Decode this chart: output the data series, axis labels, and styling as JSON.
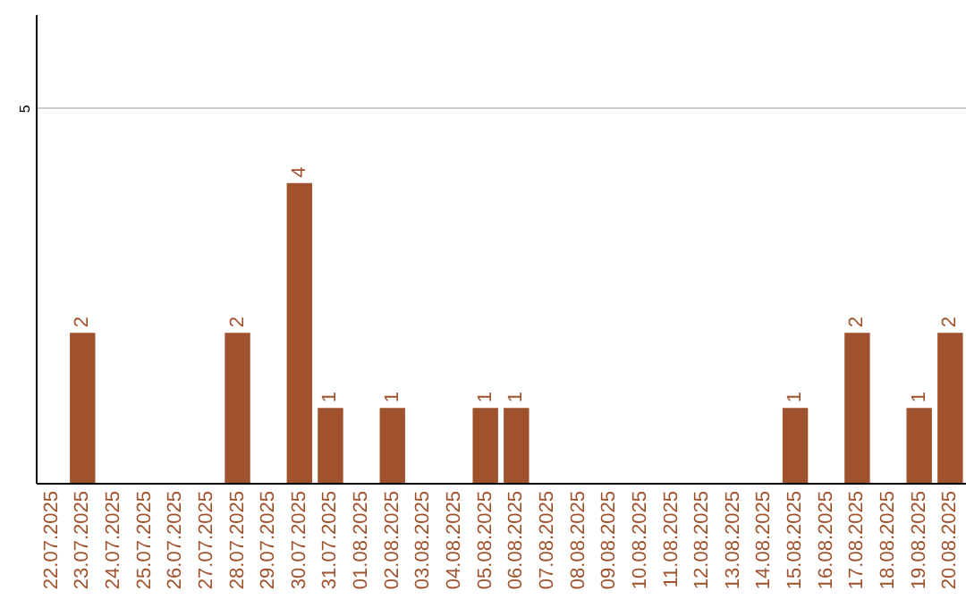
{
  "chart_data": {
    "type": "bar",
    "categories": [
      "22.07.2025",
      "23.07.2025",
      "24.07.2025",
      "25.07.2025",
      "26.07.2025",
      "27.07.2025",
      "28.07.2025",
      "29.07.2025",
      "30.07.2025",
      "31.07.2025",
      "01.08.2025",
      "02.08.2025",
      "03.08.2025",
      "04.08.2025",
      "05.08.2025",
      "06.08.2025",
      "07.08.2025",
      "08.08.2025",
      "09.08.2025",
      "10.08.2025",
      "11.08.2025",
      "12.08.2025",
      "13.08.2025",
      "14.08.2025",
      "15.08.2025",
      "16.08.2025",
      "17.08.2025",
      "18.08.2025",
      "19.08.2025",
      "20.08.2025"
    ],
    "values": [
      0,
      2,
      0,
      0,
      0,
      0,
      2,
      0,
      4,
      1,
      0,
      1,
      0,
      0,
      1,
      1,
      0,
      0,
      0,
      0,
      0,
      0,
      0,
      0,
      1,
      0,
      2,
      0,
      1,
      2
    ],
    "value_labels": [
      null,
      "2",
      null,
      null,
      null,
      null,
      "2",
      null,
      "4",
      "1",
      null,
      "1",
      null,
      null,
      "1",
      "1",
      null,
      null,
      null,
      null,
      null,
      null,
      null,
      null,
      "1",
      null,
      "2",
      null,
      "1",
      "2"
    ],
    "color": "#a0522d",
    "ylim": [
      0,
      6.25
    ],
    "yticks": [
      5
    ],
    "grid": "y"
  }
}
